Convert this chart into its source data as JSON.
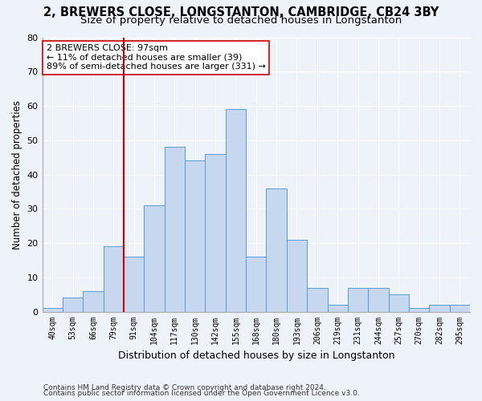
{
  "title1": "2, BREWERS CLOSE, LONGSTANTON, CAMBRIDGE, CB24 3BY",
  "title2": "Size of property relative to detached houses in Longstanton",
  "xlabel": "Distribution of detached houses by size in Longstanton",
  "ylabel": "Number of detached properties",
  "footnote1": "Contains HM Land Registry data © Crown copyright and database right 2024.",
  "footnote2": "Contains public sector information licensed under the Open Government Licence v3.0.",
  "categories": [
    "40sqm",
    "53sqm",
    "66sqm",
    "79sqm",
    "91sqm",
    "104sqm",
    "117sqm",
    "130sqm",
    "142sqm",
    "155sqm",
    "168sqm",
    "180sqm",
    "193sqm",
    "206sqm",
    "219sqm",
    "231sqm",
    "244sqm",
    "257sqm",
    "270sqm",
    "282sqm",
    "295sqm"
  ],
  "bar_heights": [
    1,
    4,
    6,
    19,
    16,
    31,
    48,
    44,
    46,
    59,
    16,
    36,
    21,
    7,
    2,
    7,
    7,
    5,
    1,
    2,
    2
  ],
  "bar_color": "#c5d8f0",
  "bar_edge_color": "#5b9bd5",
  "vline_x_index": 4,
  "vline_color": "#cc0000",
  "annotation_text": "2 BREWERS CLOSE: 97sqm\n← 11% of detached houses are smaller (39)\n89% of semi-detached houses are larger (331) →",
  "annotation_box_color": "#ffffff",
  "annotation_box_edge": "#cc0000",
  "ylim": [
    0,
    80
  ],
  "yticks": [
    0,
    10,
    20,
    30,
    40,
    50,
    60,
    70,
    80
  ],
  "background_color": "#eef2f9",
  "grid_color": "#ffffff",
  "title_fontsize": 10.5,
  "subtitle_fontsize": 9.5,
  "ylabel_fontsize": 8.5,
  "xlabel_fontsize": 9,
  "tick_fontsize": 7,
  "footnote_fontsize": 6.5,
  "annotation_fontsize": 8
}
